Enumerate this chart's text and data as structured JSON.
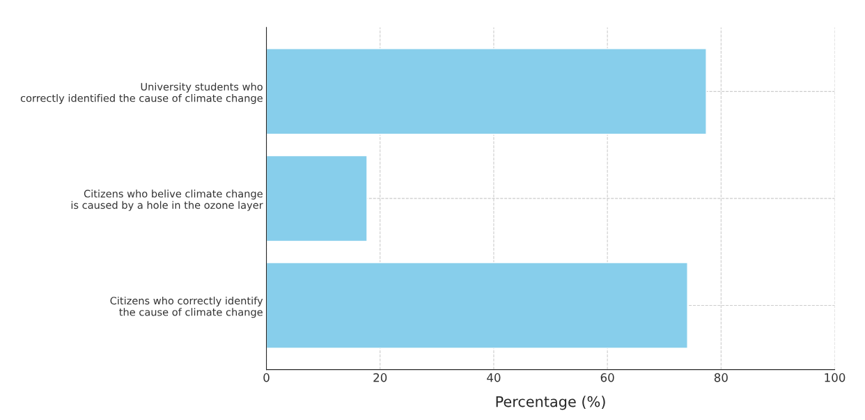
{
  "chart_data": {
    "type": "bar",
    "orientation": "horizontal",
    "categories": [
      "University students who\ncorrectly identified the cause of climate change",
      "Citizens who belive climate change\nis caused by a hole in the ozone layer",
      "Citizens who correctly identify\nthe cause of climate change"
    ],
    "values": [
      77.4,
      17.7,
      74.1
    ],
    "color": "#87ceeb",
    "xlabel": "Percentage (%)",
    "xlim": [
      0,
      100
    ],
    "xticks": [
      0,
      20,
      40,
      60,
      80,
      100
    ],
    "grid": true
  }
}
